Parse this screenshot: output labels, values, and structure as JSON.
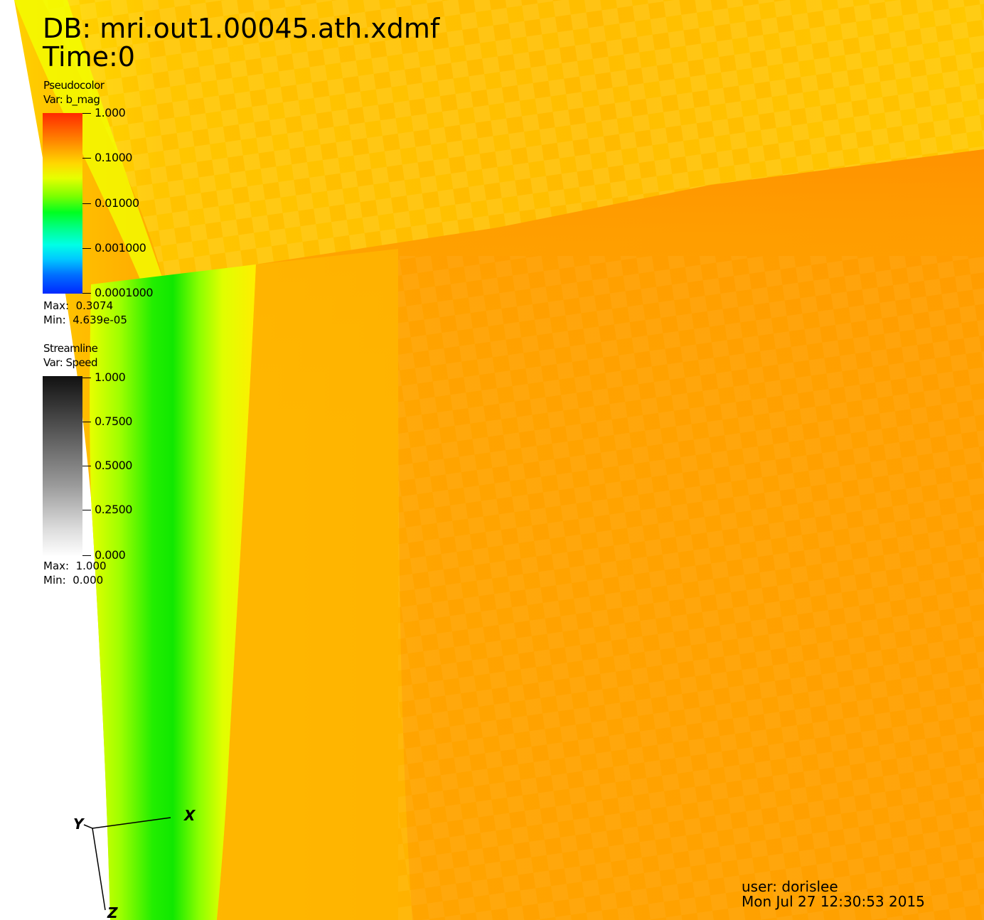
{
  "title": {
    "database": "DB: mri.out1.00045.ath.xdmf",
    "time": "Time:0"
  },
  "pseudocolor_legend": {
    "plot_type": "Pseudocolor",
    "variable": "Var: b_mag",
    "scale": "log",
    "ticks": [
      "1.000",
      "0.1000",
      "0.01000",
      "0.001000",
      "0.0001000"
    ],
    "max_label": "Max:",
    "max_value": "0.3074",
    "min_label": "Min:",
    "min_value": "4.639e-05",
    "colormap": [
      "#ff2a00",
      "#ffd800",
      "#00ff20",
      "#00ffe6",
      "#0028ff"
    ]
  },
  "streamline_legend": {
    "plot_type": "Streamline",
    "variable": "Var: Speed",
    "ticks": [
      "1.000",
      "0.7500",
      "0.5000",
      "0.2500",
      "0.000"
    ],
    "max_label": "Max:",
    "max_value": "1.000",
    "min_label": "Min:",
    "min_value": "0.000",
    "colormap": [
      "#111111",
      "#ffffff"
    ]
  },
  "axes_triad": {
    "x_label": "X",
    "y_label": "Y",
    "z_label": "Z"
  },
  "footer": {
    "user": "user: dorislee",
    "timestamp": "Mon Jul 27 12:30:53 2015"
  },
  "colors": {
    "orange_region": "#ffa000",
    "yellow_region": "#ffc400",
    "green_band": "#22ee00",
    "background": "#ffffff"
  }
}
